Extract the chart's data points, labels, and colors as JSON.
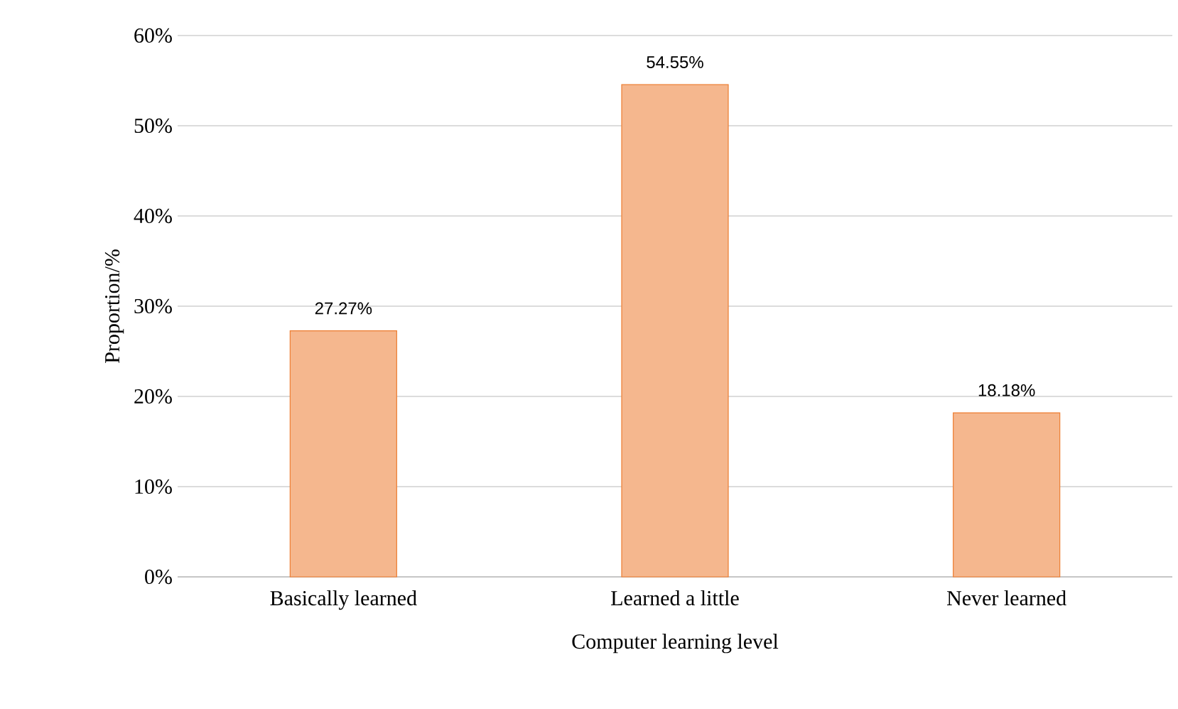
{
  "chart_data": {
    "type": "bar",
    "xlabel": "Computer learning level",
    "ylabel": "Proportion/%",
    "categories": [
      "Basically learned",
      "Learned a little",
      "Never learned"
    ],
    "values": [
      27.27,
      54.55,
      18.18
    ],
    "color": "#ed7d31",
    "value_labels": [
      "27.27%",
      "54.55%",
      "18.18%"
    ],
    "ylim": [
      0,
      60
    ],
    "yticks": [
      {
        "value": 0,
        "label": "0%"
      },
      {
        "value": 10,
        "label": "10%"
      },
      {
        "value": 20,
        "label": "20%"
      },
      {
        "value": 30,
        "label": "30%"
      },
      {
        "value": 40,
        "label": "40%"
      },
      {
        "value": 50,
        "label": "50%"
      },
      {
        "value": 60,
        "label": "60%"
      }
    ],
    "grid": "y"
  }
}
